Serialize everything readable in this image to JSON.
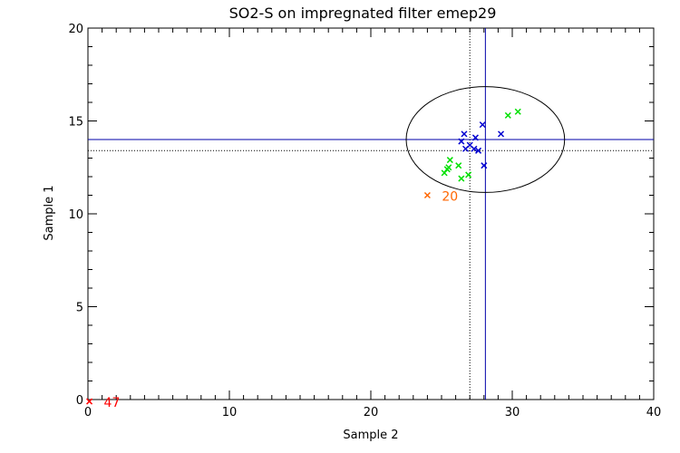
{
  "chart_data": {
    "type": "scatter",
    "title": "SO2-S on impregnated filter emep29",
    "xlabel": "Sample 2",
    "ylabel": "Sample 1",
    "xlim": [
      0,
      40
    ],
    "ylim": [
      0,
      20
    ],
    "xticks": [
      0,
      10,
      20,
      30,
      40
    ],
    "yticks": [
      0,
      5,
      10,
      15,
      20
    ],
    "grid": false,
    "marker": "x",
    "series": [
      {
        "color": "#00e000",
        "points": [
          [
            25.2,
            12.2
          ],
          [
            25.4,
            12.4
          ],
          [
            25.5,
            12.5
          ],
          [
            25.6,
            12.9
          ],
          [
            26.2,
            12.6
          ],
          [
            26.4,
            11.9
          ],
          [
            26.9,
            12.1
          ],
          [
            29.7,
            15.3
          ],
          [
            30.4,
            15.5
          ]
        ]
      },
      {
        "color": "#0000d0",
        "points": [
          [
            26.4,
            13.9
          ],
          [
            26.6,
            14.3
          ],
          [
            26.7,
            13.5
          ],
          [
            27.0,
            13.7
          ],
          [
            27.3,
            13.5
          ],
          [
            27.4,
            14.1
          ],
          [
            27.6,
            13.4
          ],
          [
            27.9,
            14.8
          ],
          [
            28.0,
            12.6
          ],
          [
            29.2,
            14.3
          ]
        ]
      },
      {
        "color": "#ff6600",
        "points": [
          [
            24.0,
            11.0
          ]
        ],
        "labels": [
          "20"
        ]
      },
      {
        "color": "#ff0000",
        "points": [
          [
            0.1,
            -0.1
          ]
        ],
        "labels": [
          "47"
        ]
      }
    ],
    "reference_lines": {
      "solid_color": "#0000aa",
      "solid_x": 28.1,
      "solid_y": 14.0,
      "dotted_color": "#000000",
      "dotted_x": 27.0,
      "dotted_y": 13.4
    },
    "ellipse": {
      "center": [
        28.1,
        14.0
      ],
      "rx": 5.6,
      "ry": 2.85,
      "color": "#000000"
    }
  }
}
